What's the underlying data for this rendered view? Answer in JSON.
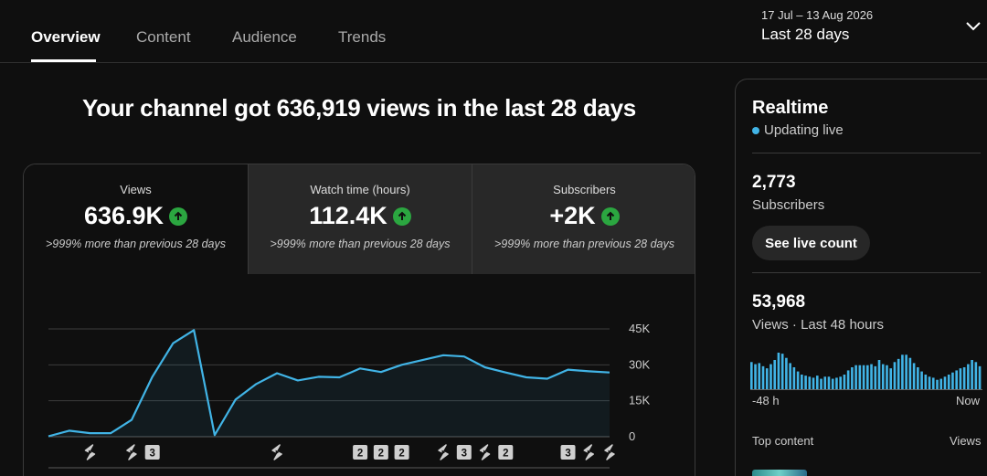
{
  "tabs": [
    "Overview",
    "Content",
    "Audience",
    "Trends"
  ],
  "date_range": {
    "range": "17 Jul – 13 Aug 2026",
    "label": "Last 28 days"
  },
  "headline": "Your channel got 636,919 views in the last 28 days",
  "metrics": [
    {
      "label": "Views",
      "value": "636.9K",
      "note": ">999% more than previous 28 days"
    },
    {
      "label": "Watch time (hours)",
      "value": "112.4K",
      "note": ">999% more than previous 28 days"
    },
    {
      "label": "Subscribers",
      "value": "+2K",
      "note": ">999% more than previous 28 days"
    }
  ],
  "chart_data": {
    "type": "area",
    "color": "#41b4e6",
    "ylim": [
      0,
      45000
    ],
    "y_ticks": [
      "45K",
      "30K",
      "15K",
      "0"
    ],
    "grid": true,
    "values": [
      200,
      2500,
      1500,
      1500,
      7000,
      25000,
      39000,
      44500,
      700,
      15500,
      22000,
      26500,
      23500,
      25000,
      24800,
      28500,
      27000,
      30000,
      32000,
      34000,
      33500,
      29000,
      26800,
      24800,
      24200,
      28000,
      27300,
      26800
    ],
    "markers": [
      {
        "day": 2,
        "type": "shorts"
      },
      {
        "day": 4,
        "type": "shorts"
      },
      {
        "day": 5,
        "type": "badge",
        "text": "3"
      },
      {
        "day": 11,
        "type": "shorts"
      },
      {
        "day": 15,
        "type": "badge",
        "text": "2"
      },
      {
        "day": 16,
        "type": "badge",
        "text": "2"
      },
      {
        "day": 17,
        "type": "badge",
        "text": "2"
      },
      {
        "day": 19,
        "type": "shorts"
      },
      {
        "day": 20,
        "type": "badge",
        "text": "3"
      },
      {
        "day": 21,
        "type": "shorts"
      },
      {
        "day": 22,
        "type": "badge",
        "text": "2"
      },
      {
        "day": 25,
        "type": "badge",
        "text": "3"
      },
      {
        "day": 26,
        "type": "shorts"
      },
      {
        "day": 27,
        "type": "shorts"
      }
    ]
  },
  "realtime": {
    "title": "Realtime",
    "status": "Updating live",
    "subscribers_value": "2,773",
    "subscribers_label": "Subscribers",
    "live_button": "See live count",
    "views_value": "53,968",
    "views_label": "Views · Last 48 hours",
    "bar_values": [
      26,
      24,
      25,
      22,
      20,
      24,
      28,
      35,
      34,
      30,
      25,
      21,
      17,
      14,
      13,
      12,
      11,
      13,
      10,
      12,
      12,
      10,
      11,
      12,
      14,
      18,
      21,
      23,
      23,
      23,
      23,
      24,
      22,
      28,
      24,
      23,
      20,
      26,
      29,
      33,
      33,
      30,
      25,
      21,
      17,
      14,
      12,
      11,
      9,
      10,
      12,
      14,
      16,
      18,
      20,
      21,
      24,
      28,
      26,
      22
    ],
    "axis_left": "-48 h",
    "axis_right": "Now",
    "top_content": "Top content",
    "views_col": "Views"
  }
}
